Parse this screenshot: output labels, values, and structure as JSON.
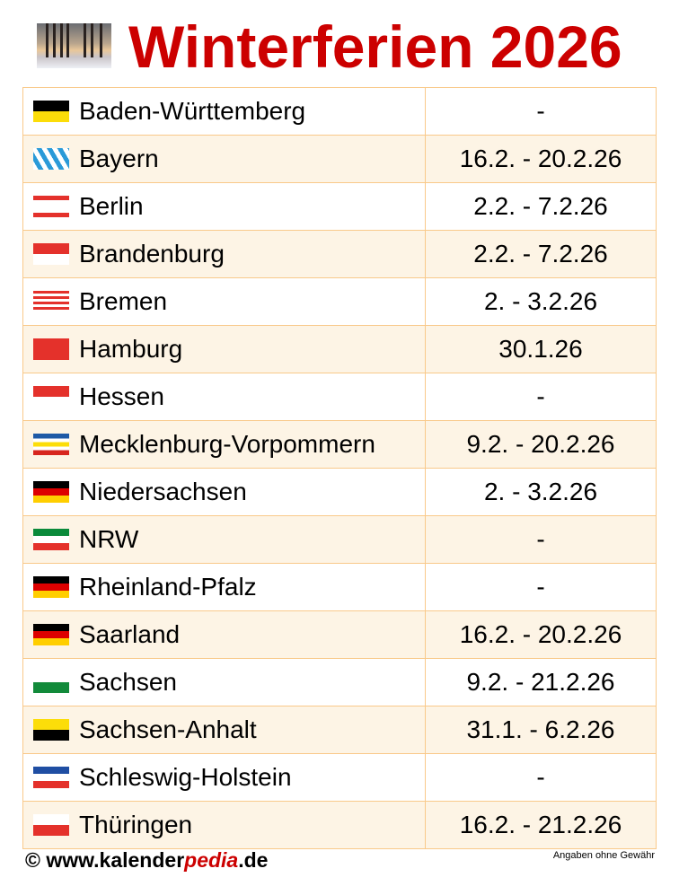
{
  "header": {
    "title": "Winterferien 2026",
    "image": "winter-avenue-photo"
  },
  "rows": [
    {
      "state": "Baden-Württemberg",
      "dates": "-",
      "flag": "baden-wuerttemberg"
    },
    {
      "state": "Bayern",
      "dates": "16.2. - 20.2.26",
      "flag": "bayern"
    },
    {
      "state": "Berlin",
      "dates": "2.2. - 7.2.26",
      "flag": "berlin"
    },
    {
      "state": "Brandenburg",
      "dates": "2.2. - 7.2.26",
      "flag": "brandenburg"
    },
    {
      "state": "Bremen",
      "dates": "2. - 3.2.26",
      "flag": "bremen"
    },
    {
      "state": "Hamburg",
      "dates": "30.1.26",
      "flag": "hamburg"
    },
    {
      "state": "Hessen",
      "dates": "-",
      "flag": "hessen"
    },
    {
      "state": "Mecklenburg-Vorpommern",
      "dates": "9.2. - 20.2.26",
      "flag": "mecklenburg-vorpommern"
    },
    {
      "state": "Niedersachsen",
      "dates": "2. - 3.2.26",
      "flag": "niedersachsen"
    },
    {
      "state": "NRW",
      "dates": "-",
      "flag": "nrw"
    },
    {
      "state": "Rheinland-Pfalz",
      "dates": "-",
      "flag": "rheinland-pfalz"
    },
    {
      "state": "Saarland",
      "dates": "16.2. - 20.2.26",
      "flag": "saarland"
    },
    {
      "state": "Sachsen",
      "dates": "9.2. - 21.2.26",
      "flag": "sachsen"
    },
    {
      "state": "Sachsen-Anhalt",
      "dates": "31.1. - 6.2.26",
      "flag": "sachsen-anhalt"
    },
    {
      "state": "Schleswig-Holstein",
      "dates": "-",
      "flag": "schleswig-holstein"
    },
    {
      "state": "Thüringen",
      "dates": "16.2. - 21.2.26",
      "flag": "thueringen"
    }
  ],
  "footer": {
    "copyright": "© www.kalender",
    "brand": "pedia",
    "tld": ".de",
    "note": "Angaben ohne Gewähr"
  },
  "colors": {
    "title": "#cc0000",
    "row_alt": "#fdf4e5",
    "border": "#f9c98a"
  }
}
